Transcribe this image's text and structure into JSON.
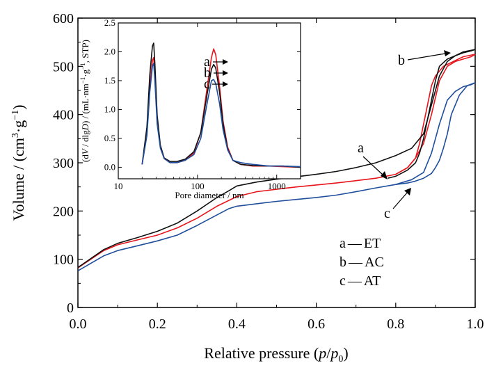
{
  "chart_data": [
    {
      "type": "line",
      "title": "",
      "xlabel": "Relative pressure (p/p0)",
      "xlabel_parts": [
        "Relative pressure (",
        "p",
        "/",
        "p",
        "0",
        ")"
      ],
      "ylabel": "Volume / (cm3·g−1)",
      "ylabel_parts": [
        "Volume / (cm",
        "3",
        "·g",
        "−1",
        ")"
      ],
      "xlim": [
        0.0,
        1.0
      ],
      "ylim": [
        0,
        600
      ],
      "xticks": [
        "0.0",
        "0.2",
        "0.4",
        "0.6",
        "0.8",
        "1.0"
      ],
      "yticks": [
        "0",
        "100",
        "200",
        "300",
        "400",
        "500",
        "600"
      ],
      "grid": false,
      "legend": {
        "placement": "bottom-right",
        "entries": [
          {
            "key": "a",
            "dash": "—",
            "label": "ET"
          },
          {
            "key": "b",
            "dash": "—",
            "label": "AC"
          },
          {
            "key": "c",
            "dash": "—",
            "label": "AT"
          }
        ]
      },
      "annotations": [
        "a",
        "b",
        "c"
      ],
      "series": [
        {
          "key": "a",
          "color": "#e8141c",
          "adsorption": {
            "x": [
              0.0,
              0.065,
              0.1,
              0.15,
              0.2,
              0.25,
              0.3,
              0.35,
              0.38,
              0.4,
              0.45,
              0.5,
              0.55,
              0.6,
              0.65,
              0.7,
              0.75,
              0.8,
              0.83,
              0.85,
              0.87,
              0.89,
              0.91,
              0.93,
              0.95,
              0.97,
              0.99,
              1.0
            ],
            "y": [
              82,
              118,
              130,
              140,
              150,
              165,
              185,
              210,
              222,
              230,
              240,
              245,
              250,
              254,
              258,
              263,
              268,
              276,
              290,
              310,
              340,
              400,
              470,
              500,
              510,
              515,
              520,
              525
            ]
          },
          "desorption": {
            "x": [
              1.0,
              0.97,
              0.94,
              0.92,
              0.9,
              0.89,
              0.88,
              0.87,
              0.86,
              0.85,
              0.83,
              0.8
            ],
            "y": [
              525,
              520,
              508,
              500,
              480,
              460,
              420,
              380,
              340,
              310,
              290,
              276
            ]
          }
        },
        {
          "key": "b",
          "color": "#111111",
          "adsorption": {
            "x": [
              0.0,
              0.065,
              0.1,
              0.15,
              0.2,
              0.25,
              0.3,
              0.35,
              0.38,
              0.4,
              0.45,
              0.5,
              0.55,
              0.6,
              0.65,
              0.7,
              0.75,
              0.8,
              0.84,
              0.87,
              0.89,
              0.91,
              0.93,
              0.95,
              0.97,
              0.99,
              1.0
            ],
            "y": [
              83,
              120,
              133,
              145,
              158,
              175,
              200,
              228,
              242,
              252,
              260,
              266,
              271,
              276,
              282,
              290,
              300,
              315,
              330,
              360,
              420,
              480,
              510,
              522,
              528,
              532,
              535
            ]
          },
          "desorption": {
            "x": [
              1.0,
              0.97,
              0.95,
              0.93,
              0.91,
              0.9,
              0.89,
              0.88,
              0.87,
              0.86,
              0.85,
              0.83,
              0.8,
              0.78
            ],
            "y": [
              535,
              530,
              522,
              515,
              500,
              470,
              430,
              390,
              350,
              320,
              300,
              285,
              272,
              268
            ]
          }
        },
        {
          "key": "c",
          "color": "#1f4e9c",
          "adsorption": {
            "x": [
              0.0,
              0.065,
              0.1,
              0.15,
              0.2,
              0.25,
              0.3,
              0.35,
              0.38,
              0.4,
              0.45,
              0.5,
              0.55,
              0.6,
              0.65,
              0.7,
              0.75,
              0.8,
              0.84,
              0.87,
              0.89,
              0.91,
              0.93,
              0.95,
              0.97,
              0.99,
              1.0
            ],
            "y": [
              76,
              107,
              118,
              128,
              138,
              150,
              170,
              192,
              205,
              210,
              215,
              220,
              224,
              228,
              233,
              240,
              248,
              255,
              265,
              280,
              320,
              380,
              430,
              448,
              458,
              462,
              466
            ]
          },
          "desorption": {
            "x": [
              1.0,
              0.98,
              0.96,
              0.94,
              0.93,
              0.92,
              0.91,
              0.9,
              0.89,
              0.87,
              0.85,
              0.83,
              0.8
            ],
            "y": [
              466,
              460,
              440,
              400,
              360,
              330,
              305,
              290,
              278,
              268,
              262,
              258,
              255
            ]
          }
        }
      ]
    },
    {
      "type": "line",
      "title": "",
      "xlabel": "Pore diameter / nm",
      "ylabel": "(dV/dlgD) / (mL·nm−1·g−1, STP)",
      "ylabel_parts": [
        "(d",
        "V",
        " / dlg",
        "D",
        ") / (mL·nm",
        "−1",
        "·g",
        "−1",
        ", STP)"
      ],
      "xscale": "log",
      "xlim": [
        10,
        2000
      ],
      "ylim": [
        -0.2,
        2.5
      ],
      "xticks": [
        "10",
        "100",
        "1000"
      ],
      "yticks": [
        "0.0",
        "0.5",
        "1.0",
        "1.5",
        "2.0",
        "2.5"
      ],
      "grid": false,
      "annotations": [
        "a",
        "b",
        "c"
      ],
      "series": [
        {
          "key": "a",
          "color": "#e8141c",
          "x": [
            20,
            23,
            25,
            27,
            28,
            29,
            31,
            34,
            38,
            45,
            55,
            70,
            90,
            110,
            130,
            150,
            160,
            170,
            190,
            210,
            240,
            280,
            350,
            500,
            800,
            1200,
            2000
          ],
          "y": [
            0.05,
            0.6,
            1.4,
            1.85,
            1.9,
            1.6,
            0.8,
            0.35,
            0.15,
            0.08,
            0.08,
            0.12,
            0.25,
            0.6,
            1.3,
            1.9,
            2.05,
            1.95,
            1.4,
            0.8,
            0.35,
            0.12,
            0.05,
            0.02,
            0.02,
            0.01,
            0.0
          ]
        },
        {
          "key": "b",
          "color": "#111111",
          "x": [
            20,
            23,
            25,
            27,
            28,
            29,
            31,
            34,
            38,
            45,
            55,
            70,
            90,
            110,
            130,
            150,
            160,
            170,
            190,
            210,
            240,
            280,
            350,
            500,
            800,
            1200,
            2000
          ],
          "y": [
            0.05,
            0.7,
            1.6,
            2.1,
            2.15,
            1.8,
            0.9,
            0.38,
            0.16,
            0.1,
            0.1,
            0.14,
            0.27,
            0.6,
            1.2,
            1.7,
            1.78,
            1.72,
            1.3,
            0.75,
            0.32,
            0.12,
            0.05,
            0.03,
            0.02,
            0.02,
            0.0
          ]
        },
        {
          "key": "c",
          "color": "#1f4e9c",
          "x": [
            20,
            23,
            25,
            27,
            28,
            29,
            31,
            34,
            38,
            45,
            55,
            70,
            90,
            110,
            130,
            150,
            160,
            170,
            190,
            210,
            240,
            280,
            350,
            500,
            800,
            1200,
            2000
          ],
          "y": [
            0.05,
            0.55,
            1.3,
            1.75,
            1.8,
            1.5,
            0.75,
            0.33,
            0.15,
            0.08,
            0.08,
            0.12,
            0.22,
            0.5,
            1.05,
            1.5,
            1.52,
            1.45,
            1.1,
            0.65,
            0.3,
            0.12,
            0.08,
            0.05,
            0.02,
            0.02,
            0.01
          ]
        }
      ]
    }
  ]
}
